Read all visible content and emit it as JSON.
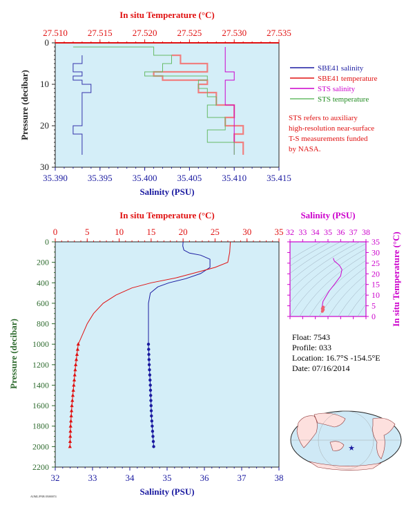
{
  "colors": {
    "plot_bg": "#d4eef8",
    "red": "#e01010",
    "blue": "#1a1aa0",
    "magenta": "#cc00cc",
    "green": "#228b22",
    "dark": "#222"
  },
  "top_chart": {
    "top_axis_label": "In situ Temperature (°C)",
    "top_ticks": [
      "27.510",
      "27.515",
      "27.520",
      "27.525",
      "27.530",
      "27.535"
    ],
    "bottom_axis_label": "Salinity (PSU)",
    "bottom_ticks": [
      "35.390",
      "35.395",
      "35.400",
      "35.405",
      "35.410",
      "35.415"
    ],
    "left_axis_label": "Pressure (decibar)",
    "left_ticks": [
      "0",
      "10",
      "20",
      "30"
    ],
    "legend": [
      {
        "label": "SBE41 salinity",
        "color": "#1a1aa0"
      },
      {
        "label": "SBE41 temperature",
        "color": "#e01010"
      },
      {
        "label": "STS salinity",
        "color": "#cc00cc"
      },
      {
        "label": "STS temperature",
        "color": "#66bb66"
      }
    ],
    "note": [
      "STS refers to auxiliary",
      "high-resolution near-surface",
      "T-S measurements funded",
      "by NASA."
    ]
  },
  "main_chart": {
    "top_axis_label": "In situ Temperature (°C)",
    "top_ticks": [
      "0",
      "5",
      "10",
      "15",
      "20",
      "25",
      "30",
      "35"
    ],
    "bottom_axis_label": "Salinity (PSU)",
    "bottom_ticks": [
      "32",
      "33",
      "34",
      "35",
      "36",
      "37",
      "38"
    ],
    "left_axis_label": "Pressure (decibar)",
    "left_ticks": [
      "0",
      "200",
      "400",
      "600",
      "800",
      "1000",
      "1200",
      "1400",
      "1600",
      "1800",
      "2000",
      "2200"
    ]
  },
  "ts_chart": {
    "top_axis_label": "Salinity (PSU)",
    "top_ticks": [
      "32",
      "33",
      "34",
      "35",
      "36",
      "37",
      "38"
    ],
    "right_axis_label": "In situ Temperature (°C)",
    "right_ticks": [
      "0",
      "5",
      "10",
      "15",
      "20",
      "25",
      "30",
      "35"
    ]
  },
  "info": {
    "float_line": "Float:  7543",
    "profile_line": "Profile:  033",
    "location_line": "Location:  16.7°S  -154.5°E",
    "date_line": "Date:  07/16/2014"
  },
  "footer_tiny": "AOML/PNB 05000074",
  "chart_data": [
    {
      "type": "line",
      "title": "",
      "xlabel": "Salinity (PSU)",
      "x2label": "In situ Temperature (°C)",
      "ylabel": "Pressure (decibar)",
      "xlim": [
        35.39,
        35.415
      ],
      "x2lim": [
        27.51,
        27.535
      ],
      "ylim": [
        30,
        0
      ],
      "series": [
        {
          "name": "SBE41 salinity",
          "axis": "salinity",
          "x": [
            35.393,
            35.393,
            35.392,
            35.393,
            35.392,
            35.393,
            35.394,
            35.393,
            35.393,
            35.393,
            35.392,
            35.393,
            35.393,
            35.393
          ],
          "y": [
            3,
            5,
            7,
            8,
            9,
            10,
            12,
            15,
            18,
            20,
            22,
            24,
            26,
            27
          ]
        },
        {
          "name": "SBE41 temperature",
          "axis": "temperature",
          "x": [
            27.523,
            27.524,
            27.527,
            27.521,
            27.522,
            27.527,
            27.526,
            27.528,
            27.53,
            27.529,
            27.531,
            27.53,
            27.531
          ],
          "y": [
            3,
            5,
            7,
            8,
            9,
            10,
            12,
            15,
            18,
            20,
            22,
            24,
            27
          ]
        },
        {
          "name": "STS salinity",
          "axis": "salinity",
          "x": [
            35.409,
            35.409,
            35.409,
            35.409,
            35.41,
            35.41,
            35.409,
            35.409,
            35.409,
            35.41,
            35.41,
            35.41,
            35.41,
            35.41
          ],
          "y": [
            1,
            3,
            5,
            7,
            8,
            9,
            11,
            13,
            15,
            18,
            21,
            24,
            26,
            27
          ]
        },
        {
          "name": "STS temperature",
          "axis": "temperature",
          "x": [
            27.512,
            27.521,
            27.523,
            27.522,
            27.52,
            27.527,
            27.526,
            27.527,
            27.528,
            27.527,
            27.529,
            27.527,
            27.53
          ],
          "y": [
            1,
            3,
            5,
            7,
            8,
            9,
            11,
            13,
            15,
            18,
            21,
            24,
            27
          ]
        }
      ]
    },
    {
      "type": "line",
      "title": "",
      "xlabel": "Salinity (PSU)",
      "x2label": "In situ Temperature (°C)",
      "ylabel": "Pressure (decibar)",
      "xlim": [
        32,
        38
      ],
      "x2lim": [
        0,
        35
      ],
      "ylim": [
        2200,
        0
      ],
      "series": [
        {
          "name": "salinity",
          "axis": "salinity",
          "x": [
            35.43,
            35.42,
            35.45,
            35.6,
            35.9,
            36.15,
            36.15,
            35.9,
            35.5,
            35.05,
            34.75,
            34.55,
            34.5,
            34.5,
            34.5,
            34.52,
            34.55,
            34.57,
            34.58,
            34.6,
            34.62,
            34.64
          ],
          "y": [
            0,
            40,
            80,
            110,
            130,
            170,
            250,
            310,
            360,
            400,
            440,
            500,
            600,
            800,
            1000,
            1200,
            1400,
            1600,
            1700,
            1800,
            1900,
            2000
          ]
        },
        {
          "name": "temperature",
          "axis": "temperature",
          "x": [
            27.4,
            27.3,
            27.0,
            25.0,
            22.0,
            19.0,
            15.0,
            12.0,
            9.5,
            7.5,
            6.0,
            5.0,
            4.3,
            3.6,
            3.2,
            2.9,
            2.6,
            2.4,
            2.3
          ],
          "y": [
            0,
            100,
            200,
            250,
            300,
            350,
            400,
            450,
            520,
            600,
            700,
            800,
            900,
            1000,
            1200,
            1400,
            1600,
            1800,
            2000
          ]
        }
      ]
    },
    {
      "type": "line",
      "title": "",
      "xlabel": "Salinity (PSU)",
      "ylabel": "In situ Temperature (°C)",
      "xlim": [
        32,
        38
      ],
      "ylim": [
        0,
        35
      ],
      "series": [
        {
          "name": "T-S",
          "x": [
            35.43,
            35.43,
            35.5,
            35.9,
            36.1,
            36.0,
            35.5,
            35.1,
            34.8,
            34.6,
            34.55,
            34.5,
            34.55,
            34.6
          ],
          "y": [
            27.4,
            27.0,
            26.0,
            24.0,
            22.0,
            19.0,
            15.0,
            12.0,
            9.0,
            7.0,
            5.0,
            4.0,
            3.0,
            2.3
          ]
        }
      ]
    }
  ]
}
